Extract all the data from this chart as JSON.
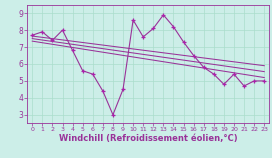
{
  "background_color": "#cceee8",
  "grid_color": "#aaddcc",
  "line_color": "#993399",
  "marker_color": "#aa22aa",
  "xlabel": "Windchill (Refroidissement éolien,°C)",
  "xlabel_fontsize": 6.0,
  "xlim": [
    -0.5,
    23.5
  ],
  "ylim": [
    2.5,
    9.5
  ],
  "yticks": [
    3,
    4,
    5,
    6,
    7,
    8,
    9
  ],
  "xticks": [
    0,
    1,
    2,
    3,
    4,
    5,
    6,
    7,
    8,
    9,
    10,
    11,
    12,
    13,
    14,
    15,
    16,
    17,
    18,
    19,
    20,
    21,
    22,
    23
  ],
  "line1_x": [
    0,
    1,
    2,
    3,
    4,
    5,
    6,
    7,
    8,
    9,
    10,
    11,
    12,
    13,
    14,
    15,
    16,
    17,
    18,
    19,
    20,
    21,
    22,
    23
  ],
  "line1_y": [
    7.7,
    7.9,
    7.4,
    8.0,
    6.8,
    5.6,
    5.4,
    4.4,
    3.0,
    4.5,
    8.6,
    7.6,
    8.1,
    8.9,
    8.2,
    7.3,
    6.5,
    5.8,
    5.4,
    4.8,
    5.4,
    4.7,
    5.0,
    5.0
  ],
  "line2_x": [
    0,
    23
  ],
  "line2_y": [
    7.65,
    5.9
  ],
  "line3_x": [
    0,
    23
  ],
  "line3_y": [
    7.35,
    5.2
  ],
  "line4_x": [
    0,
    23
  ],
  "line4_y": [
    7.5,
    5.55
  ]
}
